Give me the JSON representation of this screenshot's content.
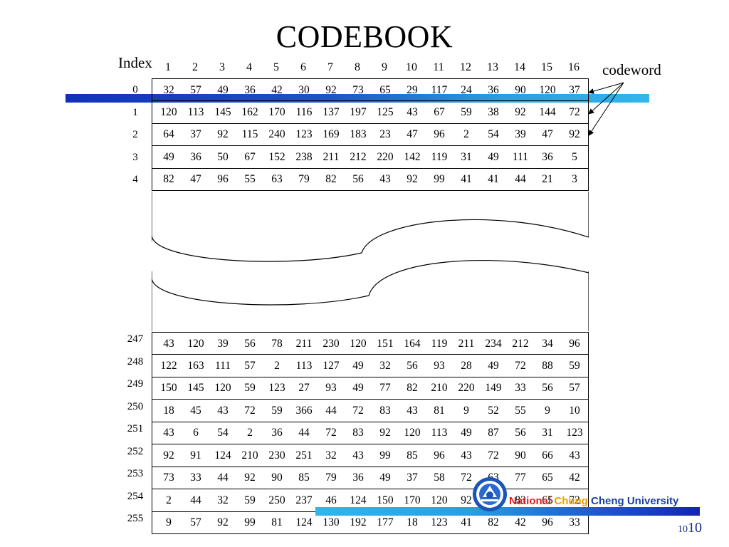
{
  "title": "CODEBOOK",
  "index_label": "Index",
  "codeword_label": "codeword",
  "columns": [
    "1",
    "2",
    "3",
    "4",
    "5",
    "6",
    "7",
    "8",
    "9",
    "10",
    "11",
    "12",
    "13",
    "14",
    "15",
    "16"
  ],
  "top_rows": [
    {
      "index": "0",
      "values": [
        "32",
        "57",
        "49",
        "36",
        "42",
        "30",
        "92",
        "73",
        "65",
        "29",
        "117",
        "24",
        "36",
        "90",
        "120",
        "37"
      ]
    },
    {
      "index": "1",
      "values": [
        "120",
        "113",
        "145",
        "162",
        "170",
        "116",
        "137",
        "197",
        "125",
        "43",
        "67",
        "59",
        "38",
        "92",
        "144",
        "72"
      ]
    },
    {
      "index": "2",
      "values": [
        "64",
        "37",
        "92",
        "115",
        "240",
        "123",
        "169",
        "183",
        "23",
        "47",
        "96",
        "2",
        "54",
        "39",
        "47",
        "92"
      ]
    },
    {
      "index": "3",
      "values": [
        "49",
        "36",
        "50",
        "67",
        "152",
        "238",
        "211",
        "212",
        "220",
        "142",
        "119",
        "31",
        "49",
        "111",
        "36",
        "5"
      ]
    },
    {
      "index": "4",
      "values": [
        "82",
        "47",
        "96",
        "55",
        "63",
        "79",
        "82",
        "56",
        "43",
        "92",
        "99",
        "41",
        "41",
        "44",
        "21",
        "3"
      ]
    }
  ],
  "bottom_rows": [
    {
      "index": "247",
      "values": [
        "43",
        "120",
        "39",
        "56",
        "78",
        "211",
        "230",
        "120",
        "151",
        "164",
        "119",
        "211",
        "234",
        "212",
        "34",
        "96"
      ]
    },
    {
      "index": "248",
      "values": [
        "122",
        "163",
        "111",
        "57",
        "2",
        "113",
        "127",
        "49",
        "32",
        "56",
        "93",
        "28",
        "49",
        "72",
        "88",
        "59"
      ]
    },
    {
      "index": "249",
      "values": [
        "150",
        "145",
        "120",
        "59",
        "123",
        "27",
        "93",
        "49",
        "77",
        "82",
        "210",
        "220",
        "149",
        "33",
        "56",
        "57"
      ]
    },
    {
      "index": "250",
      "values": [
        "18",
        "45",
        "43",
        "72",
        "59",
        "366",
        "44",
        "72",
        "83",
        "43",
        "81",
        "9",
        "52",
        "55",
        "9",
        "10"
      ]
    },
    {
      "index": "251",
      "values": [
        "43",
        "6",
        "54",
        "2",
        "36",
        "44",
        "72",
        "83",
        "92",
        "120",
        "113",
        "49",
        "87",
        "56",
        "31",
        "123"
      ]
    },
    {
      "index": "252",
      "values": [
        "92",
        "91",
        "124",
        "210",
        "230",
        "251",
        "32",
        "43",
        "99",
        "85",
        "96",
        "43",
        "72",
        "90",
        "66",
        "43"
      ]
    },
    {
      "index": "253",
      "values": [
        "73",
        "33",
        "44",
        "92",
        "90",
        "85",
        "79",
        "36",
        "49",
        "37",
        "58",
        "72",
        "63",
        "77",
        "65",
        "42"
      ]
    },
    {
      "index": "254",
      "values": [
        "2",
        "44",
        "32",
        "59",
        "250",
        "237",
        "46",
        "124",
        "150",
        "170",
        "120",
        "92",
        "90",
        "83",
        "65",
        "72"
      ]
    },
    {
      "index": "255",
      "values": [
        "9",
        "57",
        "92",
        "99",
        "81",
        "124",
        "130",
        "192",
        "177",
        "18",
        "123",
        "41",
        "82",
        "42",
        "96",
        "33"
      ]
    }
  ],
  "university": {
    "part1": "National",
    "part2": " Chung",
    "part3": " Cheng University"
  },
  "page_number": "10",
  "page_number_small": "10",
  "icons": {
    "logo": "university-seal-logo"
  },
  "colors": {
    "bar_dark": "#1330b8",
    "bar_light": "#31b6ea",
    "university_red": "#e02020",
    "university_yellow": "#e8a000",
    "university_blue": "#1a3fa0"
  }
}
